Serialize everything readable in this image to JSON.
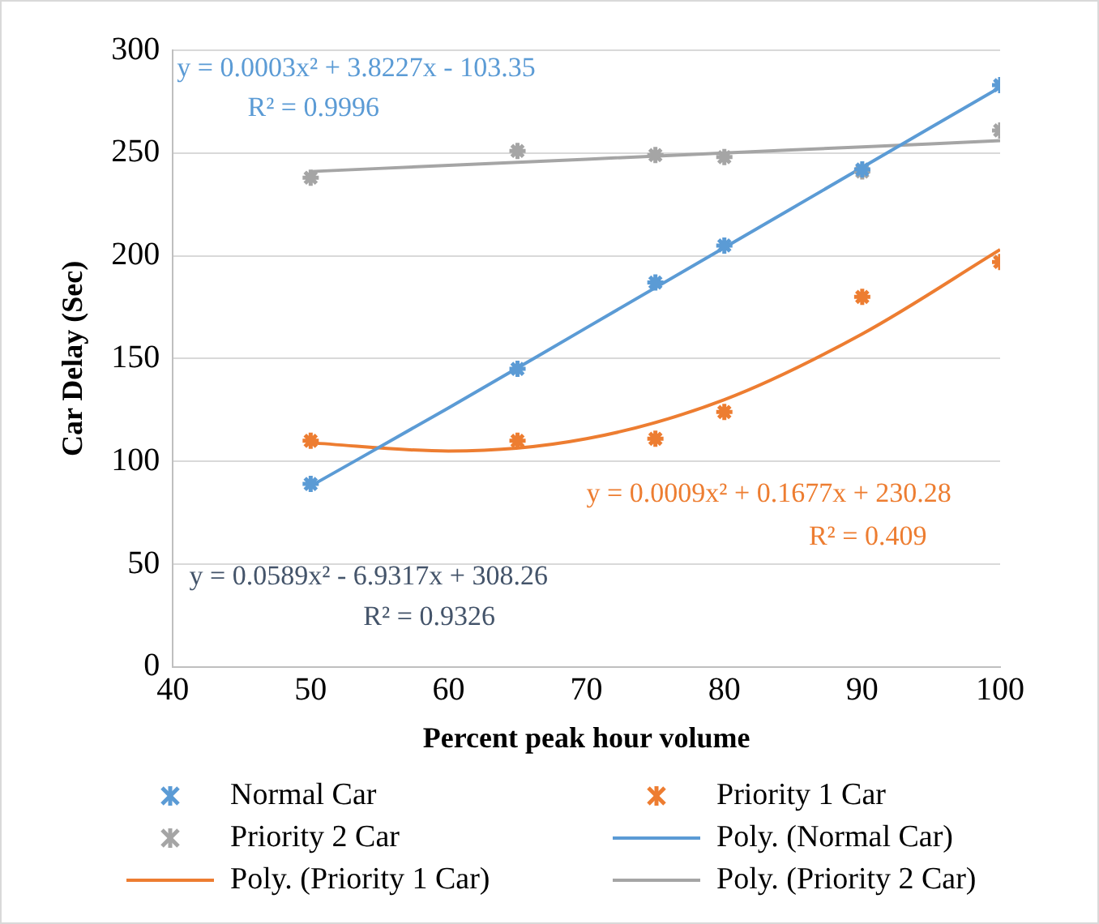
{
  "chart_data": {
    "type": "scatter",
    "xlabel": "Percent peak hour volume",
    "ylabel": "Car Delay (Sec)",
    "x": [
      50,
      65,
      75,
      80,
      90,
      100
    ],
    "series": [
      {
        "name": "Normal Car",
        "color": "#5b9bd5",
        "values": [
          89,
          145,
          187,
          205,
          242,
          283
        ]
      },
      {
        "name": "Priority 1 Car",
        "color": "#ed7d31",
        "values": [
          110,
          110,
          111,
          124,
          180,
          197
        ]
      },
      {
        "name": "Priority 2 Car",
        "color": "#a5a5a5",
        "values": [
          238,
          251,
          249,
          248,
          241,
          261
        ]
      },
      {
        "name": "Poly. (Normal Car)",
        "type": "line",
        "color": "#5b9bd5",
        "x": [
          50,
          60,
          70,
          80,
          90,
          100
        ],
        "values": [
          88,
          126,
          165,
          204,
          243,
          282
        ],
        "marker": "none"
      },
      {
        "name": "Poly. (Priority 1 Car)",
        "type": "line",
        "color": "#ed7d31",
        "x": [
          50,
          60,
          70,
          80,
          90,
          100
        ],
        "values": [
          109,
          105,
          111,
          130,
          162,
          203
        ],
        "marker": "none"
      },
      {
        "name": "Poly. (Priority 2 Car)",
        "type": "line",
        "color": "#a5a5a5",
        "x": [
          50,
          60,
          70,
          80,
          90,
          100
        ],
        "values": [
          241,
          244,
          247,
          250,
          253,
          256
        ],
        "marker": "none"
      }
    ],
    "xlim": [
      40,
      100
    ],
    "xticks": [
      40,
      50,
      60,
      70,
      80,
      90,
      100
    ],
    "ylim": [
      0,
      300
    ],
    "yticks": [
      0,
      50,
      100,
      150,
      200,
      250,
      300
    ],
    "grid": "y",
    "legend": "bottom",
    "marker": "cross",
    "annotations": [
      "y = 0.0003x² + 3.8227x - 103.35",
      "R² = 0.9996",
      "y = 0.0009x² + 0.1677x + 230.28",
      "R² = 0.409",
      "y = 0.0589x² - 6.9317x + 308.26",
      "R² = 0.9326"
    ]
  }
}
